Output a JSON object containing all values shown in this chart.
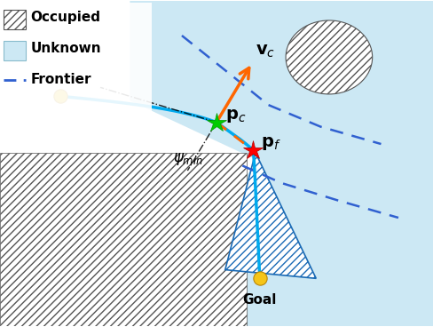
{
  "figsize": [
    4.88,
    3.68
  ],
  "dpi": 100,
  "bg_color": "#ffffff",
  "unknown_color": "#cce8f4",
  "occupied_hatch": "////",
  "frontier_color": "#3060d0",
  "trajectory_color": "#00aaee",
  "velocity_color": "#ff6600",
  "angle_line_color": "#000000",
  "psi_label": "$\\psi_{min}$",
  "vc_label": "$\\mathbf{v}_c$",
  "pc_label": "$\\mathbf{p}_c$",
  "pf_label": "$\\mathbf{p}_f$",
  "goal_label": "Goal",
  "legend_occupied": "Occupied",
  "legend_unknown": "Unknown",
  "legend_frontier": "Frontier"
}
